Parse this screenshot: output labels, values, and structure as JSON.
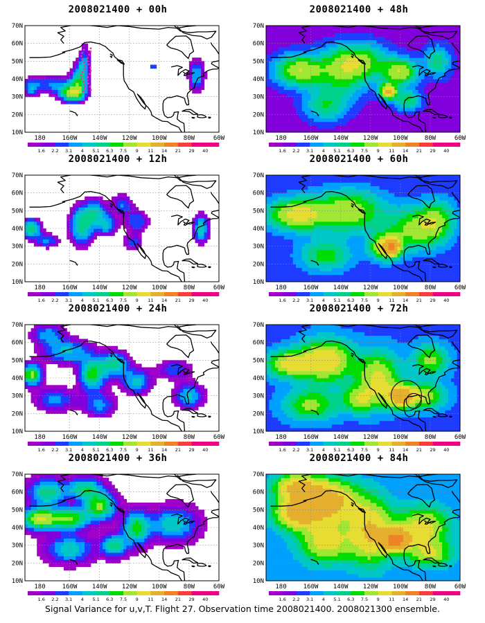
{
  "caption": "Signal Variance for u,v,T. Flight 27. Observation time 2008021400. 2008021300 ensemble.",
  "panels": [
    {
      "title": "2008021400 + 00h"
    },
    {
      "title": "2008021400 + 48h"
    },
    {
      "title": "2008021400 + 12h"
    },
    {
      "title": "2008021400 + 60h"
    },
    {
      "title": "2008021400 + 24h"
    },
    {
      "title": "2008021400 + 72h"
    },
    {
      "title": "2008021400 + 36h"
    },
    {
      "title": "2008021400 + 84h"
    }
  ],
  "lat_labels": [
    "70N",
    "60N",
    "50N",
    "40N",
    "30N",
    "20N",
    "10N"
  ],
  "lon_labels": [
    "180",
    "160W",
    "140W",
    "120W",
    "100W",
    "80W",
    "60W"
  ],
  "colorbar": {
    "labels": [
      "1.6",
      "2.2",
      "3.1",
      "4",
      "5.1",
      "6.3",
      "7.5",
      "9",
      "11",
      "14",
      "21",
      "29",
      "40"
    ],
    "colors": [
      "#a000c8",
      "#8200dc",
      "#1e3cff",
      "#00a0ff",
      "#00c8c8",
      "#00d28c",
      "#00dc00",
      "#a0e632",
      "#e6dc32",
      "#e6af2d",
      "#f08228",
      "#fa3c3c",
      "#f00082"
    ]
  },
  "colors": {
    "background": "#ffffff",
    "coast": "#000000",
    "grid": "#888888"
  }
}
